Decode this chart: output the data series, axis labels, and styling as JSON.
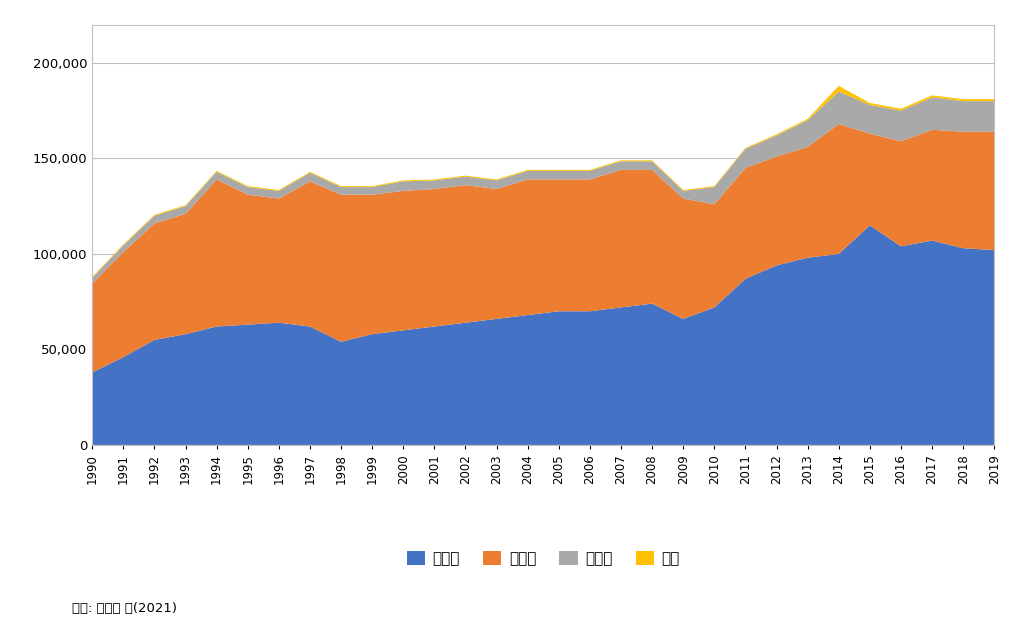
{
  "years": [
    1990,
    1991,
    1992,
    1993,
    1994,
    1995,
    1996,
    1997,
    1998,
    1999,
    2000,
    2001,
    2002,
    2003,
    2004,
    2005,
    2006,
    2007,
    2008,
    2009,
    2010,
    2011,
    2012,
    2013,
    2014,
    2015,
    2016,
    2017,
    2018,
    2019
  ],
  "coal": [
    38000,
    46000,
    55000,
    58000,
    62000,
    63000,
    64000,
    62000,
    54000,
    58000,
    60000,
    62000,
    64000,
    66000,
    68000,
    70000,
    70000,
    72000,
    74000,
    66000,
    72000,
    87000,
    94000,
    98000,
    100000,
    115000,
    104000,
    107000,
    103000,
    102000
  ],
  "oil": [
    46500,
    55000,
    61000,
    63000,
    77000,
    68000,
    65000,
    76000,
    77000,
    73000,
    73000,
    72000,
    72000,
    68000,
    71000,
    69000,
    69000,
    72000,
    70000,
    63000,
    54000,
    58000,
    57000,
    58000,
    68000,
    48000,
    55000,
    58000,
    61000,
    62000
  ],
  "gas": [
    3000,
    3500,
    4000,
    4000,
    4000,
    4000,
    4000,
    4500,
    4000,
    4000,
    5000,
    4500,
    4500,
    4500,
    4500,
    4500,
    4500,
    4500,
    4500,
    4000,
    9000,
    10000,
    11000,
    14000,
    17000,
    15000,
    16000,
    17000,
    16000,
    16000
  ],
  "other": [
    500,
    500,
    500,
    500,
    500,
    500,
    500,
    500,
    500,
    500,
    500,
    500,
    500,
    500,
    500,
    500,
    500,
    500,
    500,
    500,
    500,
    500,
    600,
    700,
    3000,
    1000,
    1000,
    1000,
    1000,
    1000
  ],
  "colors": [
    "#4472C4",
    "#ED7D31",
    "#A9A9A9",
    "#FFC000"
  ],
  "labels": [
    "석탄류",
    "석유류",
    "가스류",
    "기타"
  ],
  "ylim": [
    0,
    220000
  ],
  "yticks": [
    0,
    50000,
    100000,
    150000,
    200000
  ],
  "source": "출첳: 안영환 외(2021)",
  "bg_color": "#FFFFFF",
  "grid_color": "#BEBEBE"
}
